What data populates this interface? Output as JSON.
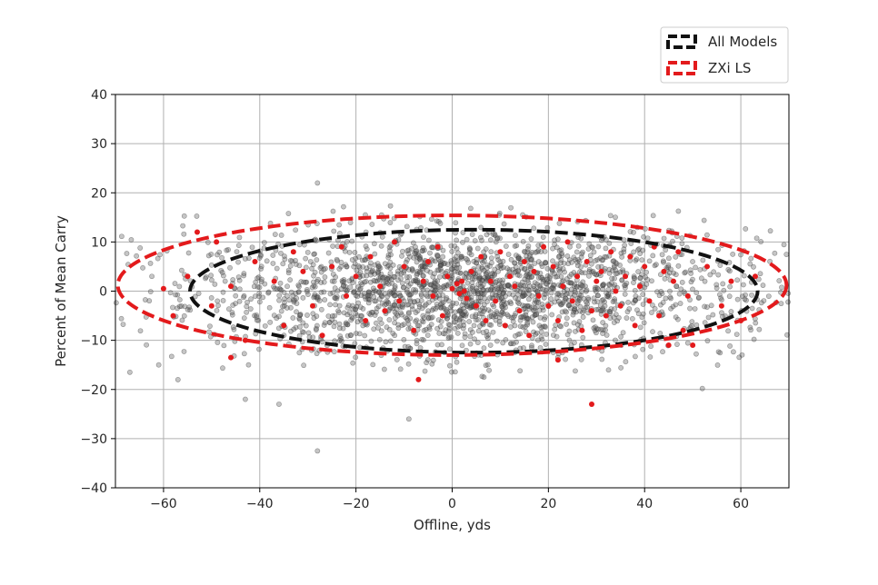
{
  "chart_data": {
    "type": "scatter",
    "title": "",
    "xlabel": "Offline, yds",
    "ylabel": "Percent of Mean Carry",
    "xlim": [
      -70,
      70
    ],
    "ylim": [
      -40,
      40
    ],
    "xticks": [
      -60,
      -40,
      -20,
      0,
      20,
      40,
      60
    ],
    "yticks": [
      -40,
      -30,
      -20,
      -10,
      0,
      10,
      20,
      30,
      40
    ],
    "xtick_labels": [
      "−60",
      "−40",
      "−20",
      "0",
      "20",
      "40",
      "60"
    ],
    "ytick_labels": [
      "−40",
      "−30",
      "−20",
      "−10",
      "0",
      "10",
      "20",
      "30",
      "40"
    ],
    "grid": true,
    "legend_position": "upper-right (outside above axes)",
    "legend": [
      {
        "name": "All Models",
        "color": "#111111",
        "style": "dashed"
      },
      {
        "name": "ZXi LS",
        "color": "#e31a1c",
        "style": "dashed"
      }
    ],
    "series": [
      {
        "name": "All Models",
        "kind": "scatter-cloud",
        "color": "#4d4d4d",
        "count": 2200,
        "x_mean": 3,
        "x_sd": 28,
        "y_mean": 0,
        "y_sd": 6.2,
        "outliers": [
          [
            -28,
            22
          ],
          [
            -28,
            -32.5
          ],
          [
            -9,
            -26
          ],
          [
            -36,
            -23
          ],
          [
            -43,
            -22
          ],
          [
            -67,
            -16.5
          ],
          [
            -57,
            -18
          ],
          [
            52,
            -19.8
          ],
          [
            -61,
            -15
          ]
        ]
      },
      {
        "name": "ZXi LS",
        "kind": "scatter-points",
        "color": "#e31a1c",
        "points": [
          [
            29,
            -23
          ],
          [
            -7,
            -18
          ],
          [
            22,
            -14
          ],
          [
            -46,
            -13.5
          ],
          [
            -43,
            -10
          ],
          [
            -60,
            0.5
          ],
          [
            -53,
            12
          ],
          [
            -49,
            10
          ],
          [
            -55,
            3
          ],
          [
            -58,
            -5
          ],
          [
            -50,
            -3
          ],
          [
            -46,
            1
          ],
          [
            -41,
            6
          ],
          [
            -37,
            2
          ],
          [
            -35,
            -7
          ],
          [
            -33,
            8
          ],
          [
            -31,
            4
          ],
          [
            -29,
            -3
          ],
          [
            -27,
            -9
          ],
          [
            -25,
            5
          ],
          [
            -23,
            9
          ],
          [
            -22,
            -1
          ],
          [
            -20,
            3
          ],
          [
            -18,
            -6
          ],
          [
            -17,
            7
          ],
          [
            -15,
            1
          ],
          [
            -14,
            -4
          ],
          [
            -12,
            10
          ],
          [
            -11,
            -2
          ],
          [
            -10,
            5
          ],
          [
            -8,
            -8
          ],
          [
            -6,
            2
          ],
          [
            -5,
            6
          ],
          [
            -4,
            -1
          ],
          [
            -3,
            9
          ],
          [
            -2,
            -5
          ],
          [
            -1,
            3
          ],
          [
            0,
            0.5
          ],
          [
            1,
            1.5
          ],
          [
            1.5,
            -0.5
          ],
          [
            2,
            2
          ],
          [
            2.5,
            0
          ],
          [
            3,
            -1.5
          ],
          [
            4,
            4
          ],
          [
            5,
            -3
          ],
          [
            6,
            7
          ],
          [
            7,
            -6
          ],
          [
            8,
            2
          ],
          [
            9,
            -2
          ],
          [
            10,
            8
          ],
          [
            11,
            -7
          ],
          [
            12,
            3
          ],
          [
            13,
            1
          ],
          [
            14,
            -4
          ],
          [
            15,
            6
          ],
          [
            16,
            -9
          ],
          [
            17,
            4
          ],
          [
            18,
            -1
          ],
          [
            19,
            9
          ],
          [
            20,
            -3
          ],
          [
            21,
            5
          ],
          [
            22,
            -6
          ],
          [
            23,
            1
          ],
          [
            24,
            10
          ],
          [
            25,
            -2
          ],
          [
            26,
            3
          ],
          [
            27,
            -8
          ],
          [
            28,
            6
          ],
          [
            29,
            -4
          ],
          [
            30,
            2
          ],
          [
            31,
            4
          ],
          [
            32,
            -5
          ],
          [
            33,
            8
          ],
          [
            34,
            0
          ],
          [
            35,
            -3
          ],
          [
            36,
            3
          ],
          [
            37,
            7
          ],
          [
            38,
            -7
          ],
          [
            39,
            1
          ],
          [
            40,
            5
          ],
          [
            41,
            -2
          ],
          [
            42,
            9
          ],
          [
            43,
            -5
          ],
          [
            44,
            4
          ],
          [
            45,
            -11
          ],
          [
            46,
            2
          ],
          [
            47,
            8
          ],
          [
            48,
            -8
          ],
          [
            49,
            -1
          ],
          [
            50,
            -11
          ],
          [
            53,
            5
          ],
          [
            56,
            -3
          ],
          [
            58,
            2
          ],
          [
            60,
            -6
          ],
          [
            63,
            3
          ]
        ]
      }
    ],
    "ellipses": [
      {
        "name": "All Models",
        "color": "#111111",
        "cx": 4.5,
        "cy": 0,
        "rx": 59,
        "ry": 12.5
      },
      {
        "name": "ZXi LS",
        "color": "#e31a1c",
        "cx": 0,
        "cy": 1.2,
        "rx": 69.5,
        "ry": 14.2
      }
    ]
  }
}
